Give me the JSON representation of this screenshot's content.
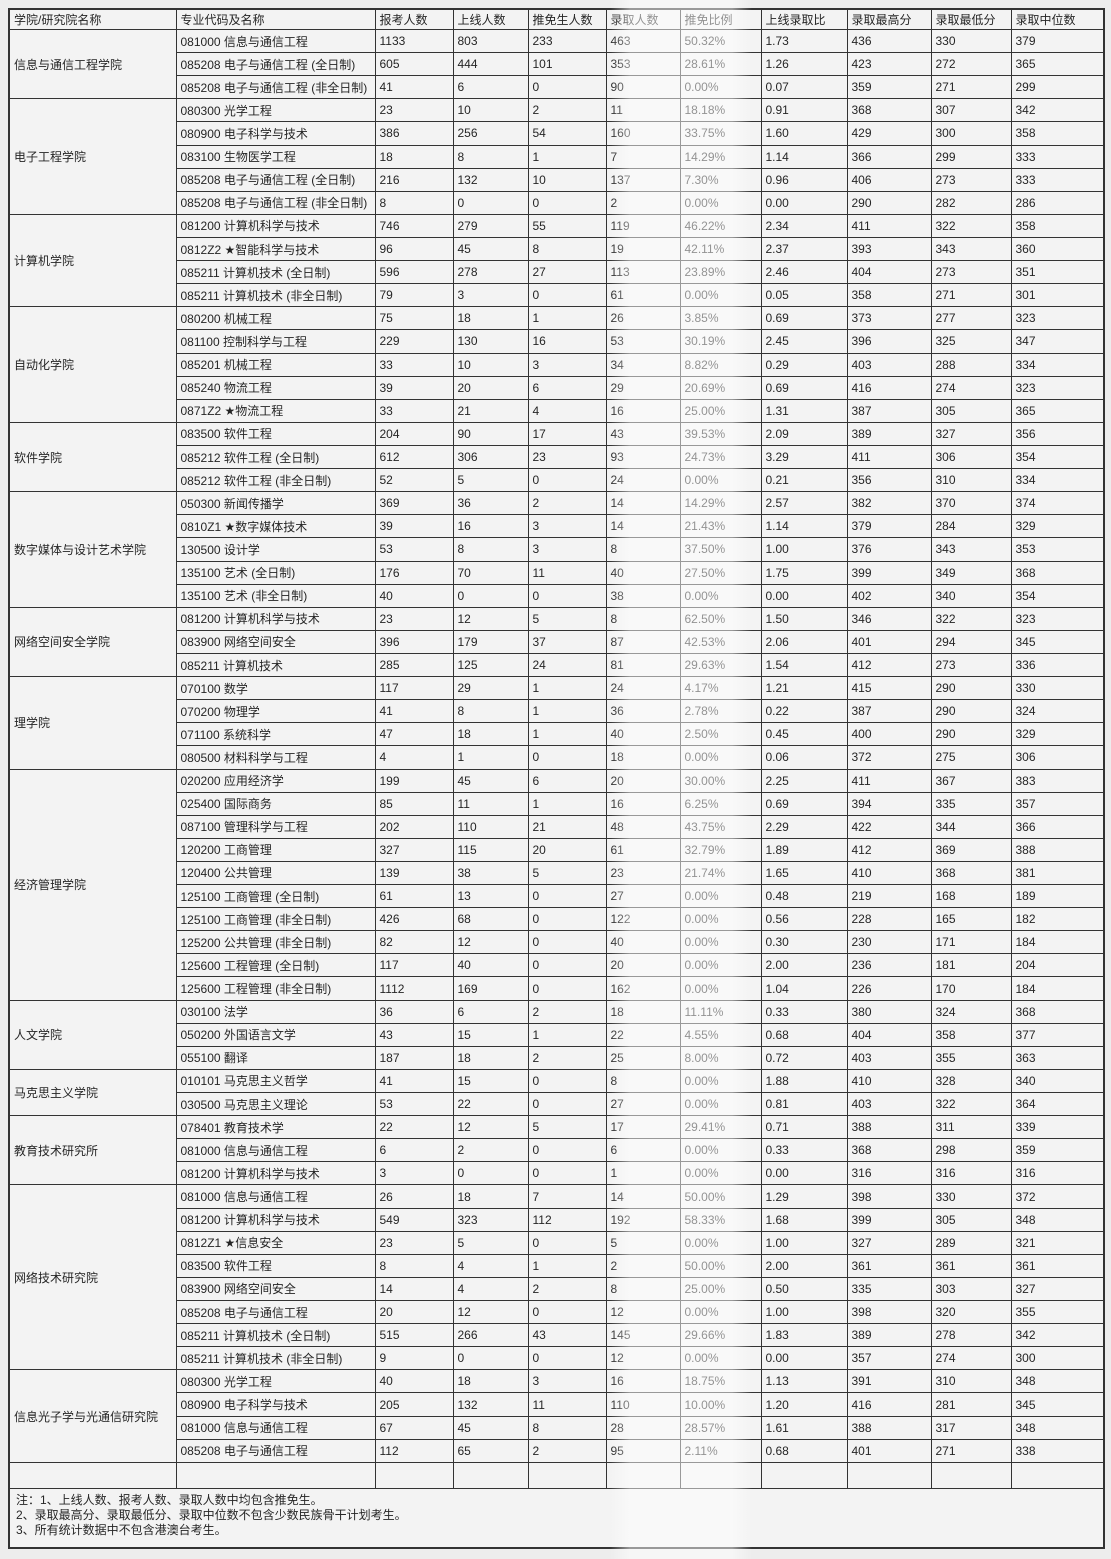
{
  "table": {
    "headers": [
      "学院/研究院名称",
      "专业代码及名称",
      "报考人数",
      "上线人数",
      "推免生人数",
      "录取人数",
      "推免比例",
      "上线录取比",
      "录取最高分",
      "录取最低分",
      "录取中位数"
    ],
    "groups": [
      {
        "college": "信息与通信工程学院",
        "rows": [
          {
            "major": "081000 信息与通信工程",
            "values": [
              "1133",
              "803",
              "233",
              "463",
              "50.32%",
              "1.73",
              "436",
              "330",
              "379"
            ]
          },
          {
            "major": "085208 电子与通信工程 (全日制)",
            "values": [
              "605",
              "444",
              "101",
              "353",
              "28.61%",
              "1.26",
              "423",
              "272",
              "365"
            ]
          },
          {
            "major": "085208 电子与通信工程 (非全日制)",
            "values": [
              "41",
              "6",
              "0",
              "90",
              "0.00%",
              "0.07",
              "359",
              "271",
              "299"
            ]
          }
        ]
      },
      {
        "college": "电子工程学院",
        "rows": [
          {
            "major": "080300 光学工程",
            "values": [
              "23",
              "10",
              "2",
              "11",
              "18.18%",
              "0.91",
              "368",
              "307",
              "342"
            ]
          },
          {
            "major": "080900 电子科学与技术",
            "values": [
              "386",
              "256",
              "54",
              "160",
              "33.75%",
              "1.60",
              "429",
              "300",
              "358"
            ]
          },
          {
            "major": "083100 生物医学工程",
            "values": [
              "18",
              "8",
              "1",
              "7",
              "14.29%",
              "1.14",
              "366",
              "299",
              "333"
            ]
          },
          {
            "major": "085208 电子与通信工程 (全日制)",
            "values": [
              "216",
              "132",
              "10",
              "137",
              "7.30%",
              "0.96",
              "406",
              "273",
              "333"
            ]
          },
          {
            "major": "085208 电子与通信工程 (非全日制)",
            "values": [
              "8",
              "0",
              "0",
              "2",
              "0.00%",
              "0.00",
              "290",
              "282",
              "286"
            ]
          }
        ]
      },
      {
        "college": "计算机学院",
        "rows": [
          {
            "major": "081200 计算机科学与技术",
            "values": [
              "746",
              "279",
              "55",
              "119",
              "46.22%",
              "2.34",
              "411",
              "322",
              "358"
            ]
          },
          {
            "major": "0812Z2 ★智能科学与技术",
            "values": [
              "96",
              "45",
              "8",
              "19",
              "42.11%",
              "2.37",
              "393",
              "343",
              "360"
            ]
          },
          {
            "major": "085211 计算机技术 (全日制)",
            "values": [
              "596",
              "278",
              "27",
              "113",
              "23.89%",
              "2.46",
              "404",
              "273",
              "351"
            ]
          },
          {
            "major": "085211 计算机技术 (非全日制)",
            "values": [
              "79",
              "3",
              "0",
              "61",
              "0.00%",
              "0.05",
              "358",
              "271",
              "301"
            ]
          }
        ]
      },
      {
        "college": "自动化学院",
        "rows": [
          {
            "major": "080200 机械工程",
            "values": [
              "75",
              "18",
              "1",
              "26",
              "3.85%",
              "0.69",
              "373",
              "277",
              "323"
            ]
          },
          {
            "major": "081100 控制科学与工程",
            "values": [
              "229",
              "130",
              "16",
              "53",
              "30.19%",
              "2.45",
              "396",
              "325",
              "347"
            ]
          },
          {
            "major": "085201 机械工程",
            "values": [
              "33",
              "10",
              "3",
              "34",
              "8.82%",
              "0.29",
              "403",
              "288",
              "334"
            ]
          },
          {
            "major": "085240 物流工程",
            "values": [
              "39",
              "20",
              "6",
              "29",
              "20.69%",
              "0.69",
              "416",
              "274",
              "323"
            ]
          },
          {
            "major": "0871Z2 ★物流工程",
            "values": [
              "33",
              "21",
              "4",
              "16",
              "25.00%",
              "1.31",
              "387",
              "305",
              "365"
            ]
          }
        ]
      },
      {
        "college": "软件学院",
        "rows": [
          {
            "major": "083500 软件工程",
            "values": [
              "204",
              "90",
              "17",
              "43",
              "39.53%",
              "2.09",
              "389",
              "327",
              "356"
            ]
          },
          {
            "major": "085212 软件工程 (全日制)",
            "values": [
              "612",
              "306",
              "23",
              "93",
              "24.73%",
              "3.29",
              "411",
              "306",
              "354"
            ]
          },
          {
            "major": "085212 软件工程 (非全日制)",
            "values": [
              "52",
              "5",
              "0",
              "24",
              "0.00%",
              "0.21",
              "356",
              "310",
              "334"
            ]
          }
        ]
      },
      {
        "college": "数字媒体与设计艺术学院",
        "rows": [
          {
            "major": "050300 新闻传播学",
            "values": [
              "369",
              "36",
              "2",
              "14",
              "14.29%",
              "2.57",
              "382",
              "370",
              "374"
            ]
          },
          {
            "major": "0810Z1 ★数字媒体技术",
            "values": [
              "39",
              "16",
              "3",
              "14",
              "21.43%",
              "1.14",
              "379",
              "284",
              "329"
            ]
          },
          {
            "major": "130500 设计学",
            "values": [
              "53",
              "8",
              "3",
              "8",
              "37.50%",
              "1.00",
              "376",
              "343",
              "353"
            ]
          },
          {
            "major": "135100 艺术 (全日制)",
            "values": [
              "176",
              "70",
              "11",
              "40",
              "27.50%",
              "1.75",
              "399",
              "349",
              "368"
            ]
          },
          {
            "major": "135100 艺术 (非全日制)",
            "values": [
              "40",
              "0",
              "0",
              "38",
              "0.00%",
              "0.00",
              "402",
              "340",
              "354"
            ]
          }
        ]
      },
      {
        "college": "网络空间安全学院",
        "rows": [
          {
            "major": "081200 计算机科学与技术",
            "values": [
              "23",
              "12",
              "5",
              "8",
              "62.50%",
              "1.50",
              "346",
              "322",
              "323"
            ]
          },
          {
            "major": "083900 网络空间安全",
            "values": [
              "396",
              "179",
              "37",
              "87",
              "42.53%",
              "2.06",
              "401",
              "294",
              "345"
            ]
          },
          {
            "major": "085211 计算机技术",
            "values": [
              "285",
              "125",
              "24",
              "81",
              "29.63%",
              "1.54",
              "412",
              "273",
              "336"
            ]
          }
        ]
      },
      {
        "college": "理学院",
        "rows": [
          {
            "major": "070100 数学",
            "values": [
              "117",
              "29",
              "1",
              "24",
              "4.17%",
              "1.21",
              "415",
              "290",
              "330"
            ]
          },
          {
            "major": "070200 物理学",
            "values": [
              "41",
              "8",
              "1",
              "36",
              "2.78%",
              "0.22",
              "387",
              "290",
              "324"
            ]
          },
          {
            "major": "071100 系统科学",
            "values": [
              "47",
              "18",
              "1",
              "40",
              "2.50%",
              "0.45",
              "400",
              "290",
              "329"
            ]
          },
          {
            "major": "080500 材料科学与工程",
            "values": [
              "4",
              "1",
              "0",
              "18",
              "0.00%",
              "0.06",
              "372",
              "275",
              "306"
            ]
          }
        ]
      },
      {
        "college": "经济管理学院",
        "rows": [
          {
            "major": "020200 应用经济学",
            "values": [
              "199",
              "45",
              "6",
              "20",
              "30.00%",
              "2.25",
              "411",
              "367",
              "383"
            ]
          },
          {
            "major": "025400 国际商务",
            "values": [
              "85",
              "11",
              "1",
              "16",
              "6.25%",
              "0.69",
              "394",
              "335",
              "357"
            ]
          },
          {
            "major": "087100 管理科学与工程",
            "values": [
              "202",
              "110",
              "21",
              "48",
              "43.75%",
              "2.29",
              "422",
              "344",
              "366"
            ]
          },
          {
            "major": "120200 工商管理",
            "values": [
              "327",
              "115",
              "20",
              "61",
              "32.79%",
              "1.89",
              "412",
              "369",
              "388"
            ]
          },
          {
            "major": "120400 公共管理",
            "values": [
              "139",
              "38",
              "5",
              "23",
              "21.74%",
              "1.65",
              "410",
              "368",
              "381"
            ]
          },
          {
            "major": "125100 工商管理 (全日制)",
            "values": [
              "61",
              "13",
              "0",
              "27",
              "0.00%",
              "0.48",
              "219",
              "168",
              "189"
            ]
          },
          {
            "major": "125100 工商管理 (非全日制)",
            "values": [
              "426",
              "68",
              "0",
              "122",
              "0.00%",
              "0.56",
              "228",
              "165",
              "182"
            ]
          },
          {
            "major": "125200 公共管理 (非全日制)",
            "values": [
              "82",
              "12",
              "0",
              "40",
              "0.00%",
              "0.30",
              "230",
              "171",
              "184"
            ]
          },
          {
            "major": "125600 工程管理 (全日制)",
            "values": [
              "117",
              "40",
              "0",
              "20",
              "0.00%",
              "2.00",
              "236",
              "181",
              "204"
            ]
          },
          {
            "major": "125600 工程管理 (非全日制)",
            "values": [
              "1112",
              "169",
              "0",
              "162",
              "0.00%",
              "1.04",
              "226",
              "170",
              "184"
            ]
          }
        ]
      },
      {
        "college": "人文学院",
        "rows": [
          {
            "major": "030100 法学",
            "values": [
              "36",
              "6",
              "2",
              "18",
              "11.11%",
              "0.33",
              "380",
              "324",
              "368"
            ]
          },
          {
            "major": "050200 外国语言文学",
            "values": [
              "43",
              "15",
              "1",
              "22",
              "4.55%",
              "0.68",
              "404",
              "358",
              "377"
            ]
          },
          {
            "major": "055100 翻译",
            "values": [
              "187",
              "18",
              "2",
              "25",
              "8.00%",
              "0.72",
              "403",
              "355",
              "363"
            ]
          }
        ]
      },
      {
        "college": "马克思主义学院",
        "rows": [
          {
            "major": "010101 马克思主义哲学",
            "values": [
              "41",
              "15",
              "0",
              "8",
              "0.00%",
              "1.88",
              "410",
              "328",
              "340"
            ]
          },
          {
            "major": "030500 马克思主义理论",
            "values": [
              "53",
              "22",
              "0",
              "27",
              "0.00%",
              "0.81",
              "403",
              "322",
              "364"
            ]
          }
        ]
      },
      {
        "college": "教育技术研究所",
        "rows": [
          {
            "major": "078401 教育技术学",
            "values": [
              "22",
              "12",
              "5",
              "17",
              "29.41%",
              "0.71",
              "388",
              "311",
              "339"
            ]
          },
          {
            "major": "081000 信息与通信工程",
            "values": [
              "6",
              "2",
              "0",
              "6",
              "0.00%",
              "0.33",
              "368",
              "298",
              "359"
            ]
          },
          {
            "major": "081200 计算机科学与技术",
            "values": [
              "3",
              "0",
              "0",
              "1",
              "0.00%",
              "0.00",
              "316",
              "316",
              "316"
            ]
          }
        ]
      },
      {
        "college": "网络技术研究院",
        "rows": [
          {
            "major": "081000 信息与通信工程",
            "values": [
              "26",
              "18",
              "7",
              "14",
              "50.00%",
              "1.29",
              "398",
              "330",
              "372"
            ]
          },
          {
            "major": "081200 计算机科学与技术",
            "values": [
              "549",
              "323",
              "112",
              "192",
              "58.33%",
              "1.68",
              "399",
              "305",
              "348"
            ]
          },
          {
            "major": "0812Z1 ★信息安全",
            "values": [
              "23",
              "5",
              "0",
              "5",
              "0.00%",
              "1.00",
              "327",
              "289",
              "321"
            ]
          },
          {
            "major": "083500 软件工程",
            "values": [
              "8",
              "4",
              "1",
              "2",
              "50.00%",
              "2.00",
              "361",
              "361",
              "361"
            ]
          },
          {
            "major": "083900 网络空间安全",
            "values": [
              "14",
              "4",
              "2",
              "8",
              "25.00%",
              "0.50",
              "335",
              "303",
              "327"
            ]
          },
          {
            "major": "085208 电子与通信工程",
            "values": [
              "20",
              "12",
              "0",
              "12",
              "0.00%",
              "1.00",
              "398",
              "320",
              "355"
            ]
          },
          {
            "major": "085211 计算机技术 (全日制)",
            "values": [
              "515",
              "266",
              "43",
              "145",
              "29.66%",
              "1.83",
              "389",
              "278",
              "342"
            ]
          },
          {
            "major": "085211 计算机技术 (非全日制)",
            "values": [
              "9",
              "0",
              "0",
              "12",
              "0.00%",
              "0.00",
              "357",
              "274",
              "300"
            ]
          }
        ]
      },
      {
        "college": "信息光子学与光通信研究院",
        "rows": [
          {
            "major": "080300 光学工程",
            "values": [
              "40",
              "18",
              "3",
              "16",
              "18.75%",
              "1.13",
              "391",
              "310",
              "348"
            ]
          },
          {
            "major": "080900 电子科学与技术",
            "values": [
              "205",
              "132",
              "11",
              "110",
              "10.00%",
              "1.20",
              "416",
              "281",
              "345"
            ]
          },
          {
            "major": "081000 信息与通信工程",
            "values": [
              "67",
              "45",
              "8",
              "28",
              "28.57%",
              "1.61",
              "388",
              "317",
              "348"
            ]
          },
          {
            "major": "085208 电子与通信工程",
            "values": [
              "112",
              "65",
              "2",
              "95",
              "2.11%",
              "0.68",
              "401",
              "271",
              "338"
            ]
          }
        ]
      }
    ],
    "notes": [
      "注：1、上线人数、报考人数、录取人数中均包含推免生。",
      "2、录取最高分、录取最低分、录取中位数不包含少数民族骨干计划考生。",
      "3、所有统计数据中不包含港澳台考生。"
    ]
  }
}
